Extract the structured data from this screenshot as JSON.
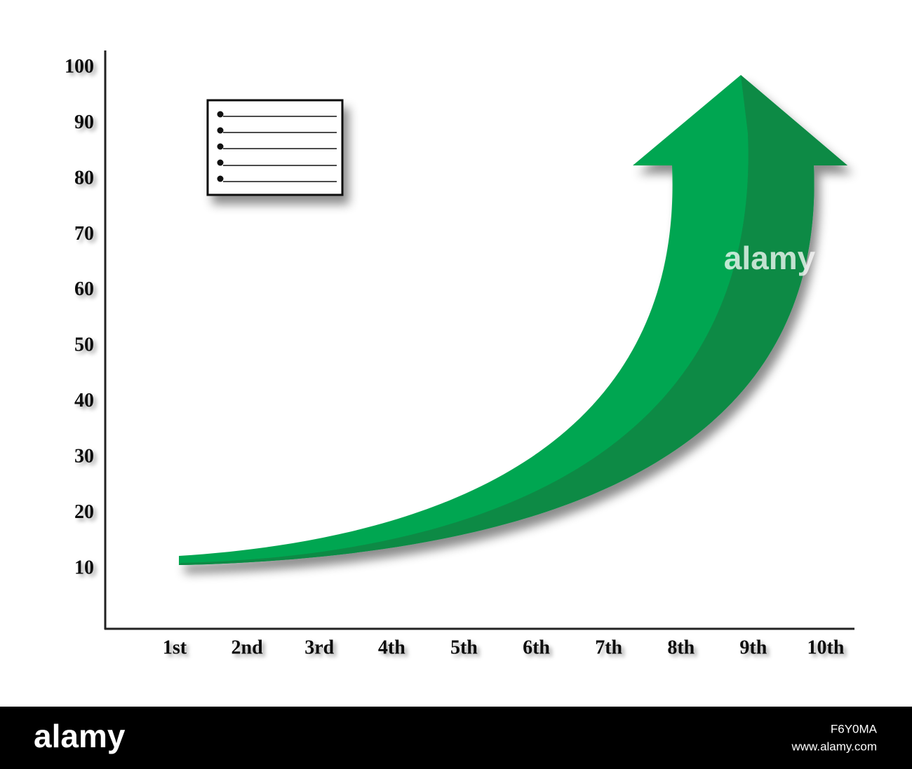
{
  "y_axis": {
    "ticks": [
      10,
      20,
      30,
      40,
      50,
      60,
      70,
      80,
      90,
      100
    ]
  },
  "x_axis": {
    "labels": [
      "1st",
      "2nd",
      "3rd",
      "4th",
      "5th",
      "6th",
      "7th",
      "8th",
      "9th",
      "10th"
    ]
  },
  "watermark": "alamy",
  "footer": {
    "brand": "alamy",
    "image_id": "F6Y0MA",
    "url": "www.alamy.com"
  }
}
